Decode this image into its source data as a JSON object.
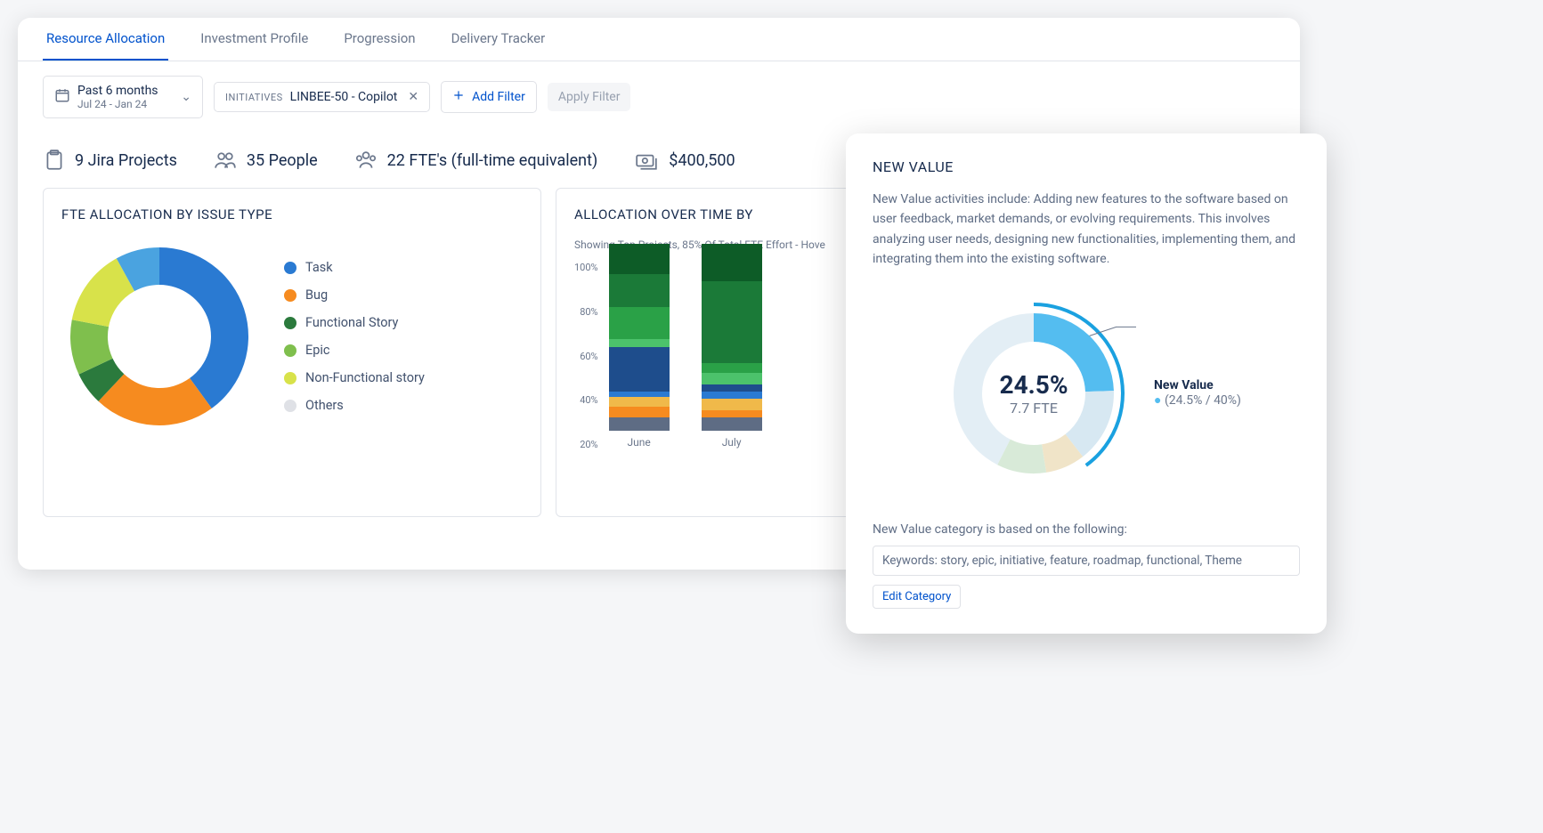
{
  "tabs": [
    "Resource Allocation",
    "Investment Profile",
    "Progression",
    "Delivery Tracker"
  ],
  "active_tab": 0,
  "date_filter": {
    "title": "Past 6 months",
    "range": "Jul 24 - Jan 24"
  },
  "initiative": {
    "label": "INITIATIVES",
    "value": "LINBEE-50 - Copilot"
  },
  "add_filter": "Add Filter",
  "apply_filter": "Apply Filter",
  "stats": {
    "projects": "9 Jira Projects",
    "people": "35 People",
    "fte": "22 FTE's (full-time equivalent)",
    "cost": "$400,500"
  },
  "fte_panel": {
    "title": "FTE ALLOCATION BY ISSUE TYPE",
    "donut": {
      "type": "donut",
      "slices": [
        {
          "label": "Task",
          "value": 40,
          "color": "#2a7ad2"
        },
        {
          "label": "Bug",
          "value": 22,
          "color": "#f68b1f"
        },
        {
          "label": "Functional Story",
          "value": 6,
          "color": "#2b7a3d"
        },
        {
          "label": "Epic",
          "value": 10,
          "color": "#7fbf4d"
        },
        {
          "label": "Non-Functional story",
          "value": 14,
          "color": "#d8e24a"
        },
        {
          "label": "Others",
          "value": 8,
          "color": "#4aa3e0"
        }
      ],
      "legend_others_color": "#dfe1e6",
      "inner_ratio": 0.58
    }
  },
  "time_panel": {
    "title": "ALLOCATION OVER TIME BY",
    "note": "Showing Top Projects, 85% Of Total FTE Effort",
    "note_suffix": "  - Hove",
    "y_ticks": [
      "100%",
      "80%",
      "60%",
      "40%",
      "20%"
    ],
    "bars": {
      "type": "stacked_bar",
      "months": [
        "June",
        "July"
      ],
      "series_colors": [
        "#5e6c84",
        "#f68b1f",
        "#f0b94a",
        "#2a7ad2",
        "#1e4d8c",
        "#4cc26b",
        "#2aa147",
        "#1b7a38",
        "#0d5c27"
      ],
      "data": [
        [
          7,
          6,
          5,
          3,
          24,
          4,
          17,
          18,
          16
        ],
        [
          7,
          4,
          6,
          4,
          4,
          6,
          5,
          44,
          20
        ]
      ]
    }
  },
  "popover": {
    "title": "NEW VALUE",
    "description": "New Value activities include: Adding new features to the software based on user feedback, market demands, or evolving requirements. This involves analyzing user needs, designing new functionalities, implementing them, and integrating them into the existing software.",
    "center_pct": "24.5%",
    "center_fte": "7.7 FTE",
    "callout_title": "New Value",
    "callout_sub": "(24.5% / 40%)",
    "donut": {
      "type": "donut",
      "highlight_color": "#54bdf0",
      "highlight_value": 24.5,
      "target_ring_color": "#1aa1e0",
      "target_value": 40,
      "faded_slices": [
        {
          "value": 15,
          "color": "#d7e8f2"
        },
        {
          "value": 8,
          "color": "#f0e4c8"
        },
        {
          "value": 10,
          "color": "#d8ead8"
        },
        {
          "value": 42.5,
          "color": "#e3eef5"
        }
      ]
    },
    "footer_label": "New Value category is based on the following:",
    "keywords": "Keywords: story, epic, initiative, feature, roadmap, functional, Theme",
    "edit": "Edit Category"
  }
}
